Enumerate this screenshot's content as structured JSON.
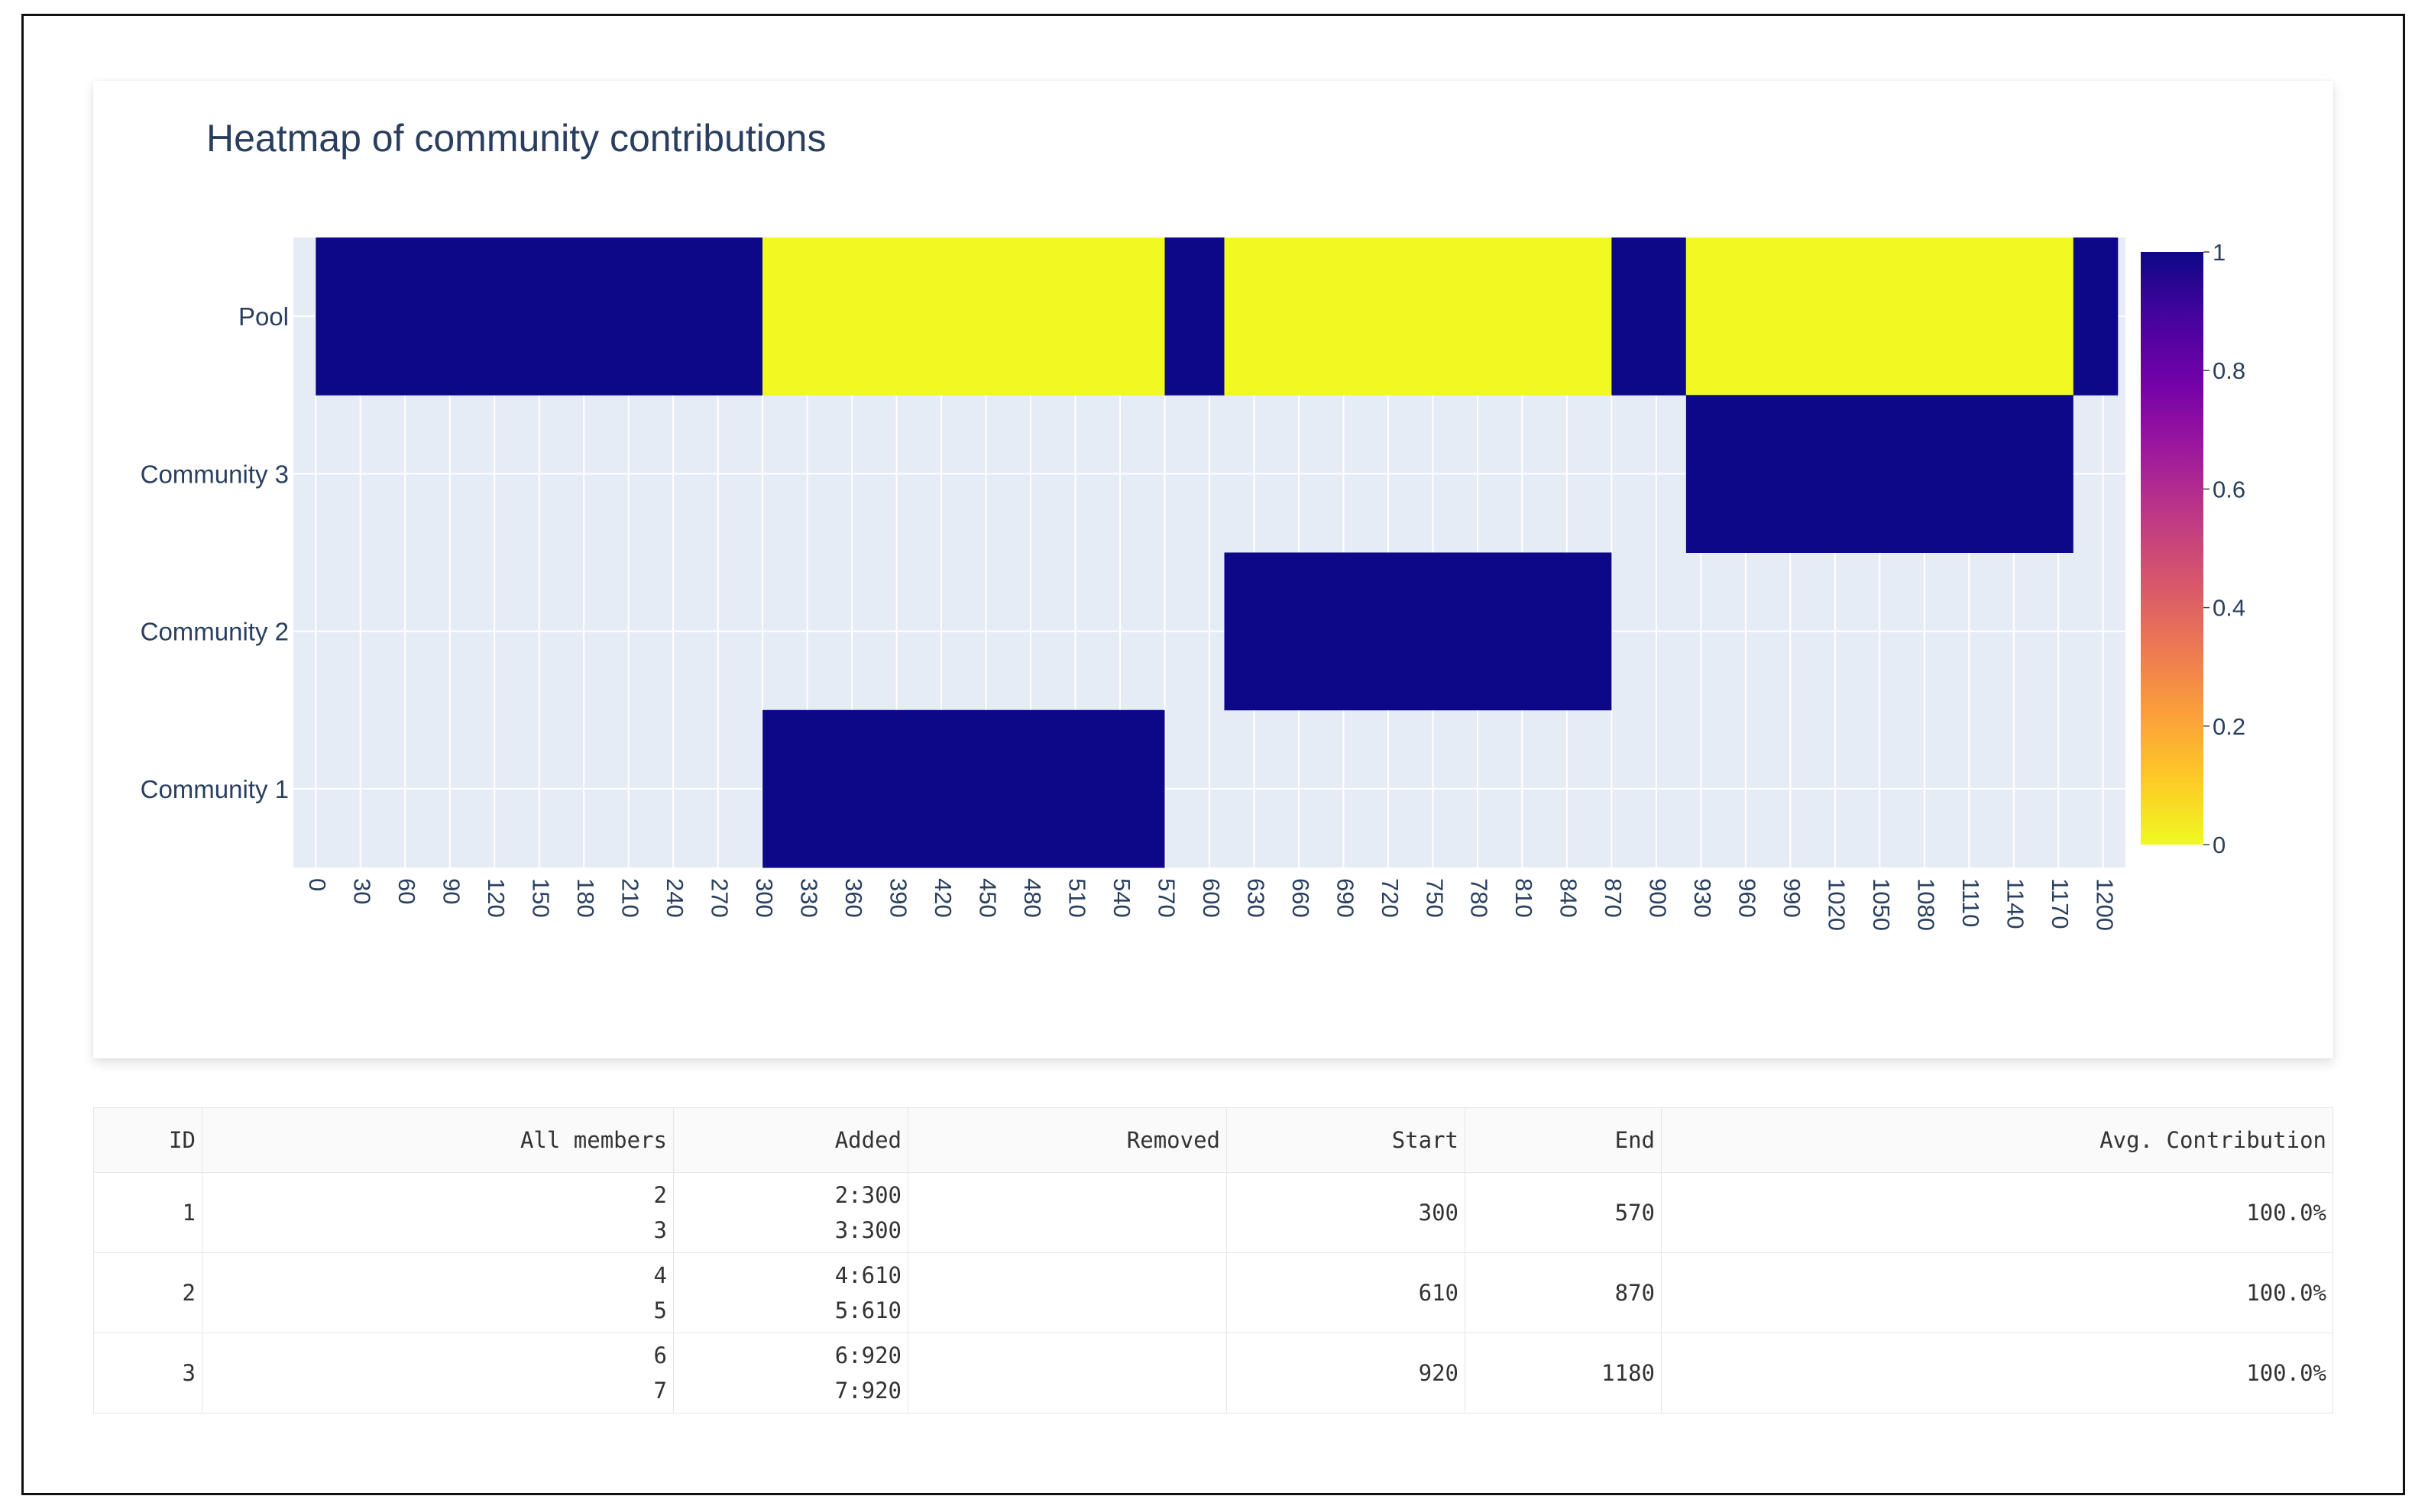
{
  "chart_data": {
    "type": "heatmap",
    "title": "Heatmap of community contributions",
    "y_categories": [
      "Community 1",
      "Community 2",
      "Community 3",
      "Pool"
    ],
    "x_ticks": [
      0,
      30,
      60,
      90,
      120,
      150,
      180,
      210,
      240,
      270,
      300,
      330,
      360,
      390,
      420,
      450,
      480,
      510,
      540,
      570,
      600,
      630,
      660,
      690,
      720,
      750,
      780,
      810,
      840,
      870,
      900,
      930,
      960,
      990,
      1020,
      1050,
      1080,
      1110,
      1140,
      1170,
      1200
    ],
    "xlim": [
      0,
      1200
    ],
    "cells": [
      {
        "row": "Pool",
        "x0": 0,
        "x1": 300,
        "value": 1
      },
      {
        "row": "Pool",
        "x0": 300,
        "x1": 570,
        "value": 0
      },
      {
        "row": "Pool",
        "x0": 570,
        "x1": 610,
        "value": 1
      },
      {
        "row": "Pool",
        "x0": 610,
        "x1": 870,
        "value": 0
      },
      {
        "row": "Pool",
        "x0": 870,
        "x1": 920,
        "value": 1
      },
      {
        "row": "Pool",
        "x0": 920,
        "x1": 1180,
        "value": 0
      },
      {
        "row": "Pool",
        "x0": 1180,
        "x1": 1210,
        "value": 1
      },
      {
        "row": "Community 1",
        "x0": 300,
        "x1": 570,
        "value": 1
      },
      {
        "row": "Community 2",
        "x0": 610,
        "x1": 870,
        "value": 1
      },
      {
        "row": "Community 3",
        "x0": 920,
        "x1": 1180,
        "value": 1
      }
    ],
    "colorbar": {
      "min": 0,
      "max": 1,
      "ticks": [
        "1",
        "0.8",
        "0.6",
        "0.4",
        "0.2",
        "0"
      ]
    },
    "colors": {
      "high": "#0d0887",
      "low": "#f0f921",
      "grid_bg": "#e5ecf6",
      "axis_text": "#2a3f5f"
    }
  },
  "table": {
    "headers": {
      "id": "ID",
      "members": "All members",
      "added": "Added",
      "removed": "Removed",
      "start": "Start",
      "end": "End",
      "avg": "Avg. Contribution"
    },
    "rows": [
      {
        "id": "1",
        "members": [
          "2",
          "3"
        ],
        "added": [
          "2:300",
          "3:300"
        ],
        "removed": "",
        "start": "300",
        "end": "570",
        "avg": "100.0%"
      },
      {
        "id": "2",
        "members": [
          "4",
          "5"
        ],
        "added": [
          "4:610",
          "5:610"
        ],
        "removed": "",
        "start": "610",
        "end": "870",
        "avg": "100.0%"
      },
      {
        "id": "3",
        "members": [
          "6",
          "7"
        ],
        "added": [
          "6:920",
          "7:920"
        ],
        "removed": "",
        "start": "920",
        "end": "1180",
        "avg": "100.0%"
      }
    ]
  }
}
